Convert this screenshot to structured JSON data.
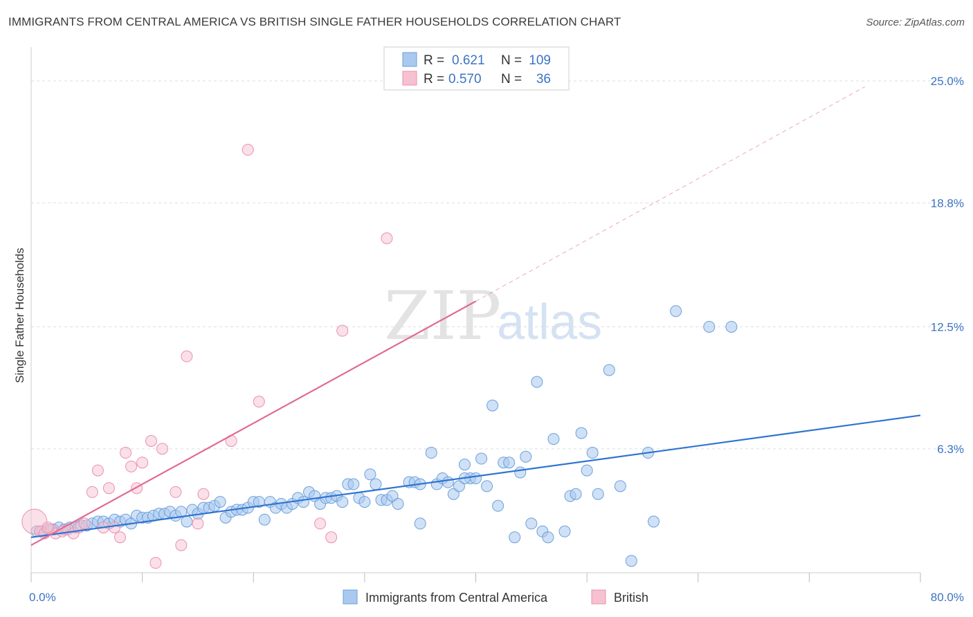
{
  "title": "IMMIGRANTS FROM CENTRAL AMERICA VS BRITISH SINGLE FATHER HOUSEHOLDS CORRELATION CHART",
  "source": "Source: ZipAtlas.com",
  "watermark": {
    "zip": "ZIP",
    "atlas": "atlas"
  },
  "legend": {
    "rows": [
      {
        "r_label": "R =",
        "r_value": "0.621",
        "n_label": "N =",
        "n_value": "109",
        "color": "#7fb0e8"
      },
      {
        "r_label": "R =",
        "r_value": "0.570",
        "n_label": "N =",
        "n_value": "36",
        "color": "#f19cb7"
      }
    ]
  },
  "bottom_legend": [
    {
      "label": "Immigrants from Central America",
      "color": "#7fb0e8"
    },
    {
      "label": "British",
      "color": "#f19cb7"
    }
  ],
  "colors": {
    "blue_fill": "#a9c9ef",
    "blue_stroke": "#6a9fdc",
    "blue_line": "#2f74d0",
    "pink_fill": "#f6c1d1",
    "pink_stroke": "#ec8fae",
    "pink_line": "#e06a93",
    "tick_label": "#3b73c4",
    "grid": "#dddddd"
  },
  "chart_data": {
    "type": "scatter",
    "title": "IMMIGRANTS FROM CENTRAL AMERICA VS BRITISH SINGLE FATHER HOUSEHOLDS CORRELATION CHART",
    "xlabel": "",
    "ylabel": "Single Father Households",
    "xlim": [
      0,
      80
    ],
    "ylim": [
      0,
      26.3
    ],
    "x_tick_labels": [
      {
        "value": 0,
        "label": "0.0%"
      },
      {
        "value": 80,
        "label": "80.0%"
      }
    ],
    "y_tick_labels": [
      {
        "value": 6.3,
        "label": "6.3%"
      },
      {
        "value": 12.5,
        "label": "12.5%"
      },
      {
        "value": 18.8,
        "label": "18.8%"
      },
      {
        "value": 25.0,
        "label": "25.0%"
      }
    ],
    "grid": true,
    "legend_position": "top-center",
    "series": [
      {
        "name": "Immigrants from Central America",
        "color": "#7fb0e8",
        "trend": {
          "x": [
            0,
            80
          ],
          "y": [
            1.8,
            8.0
          ]
        },
        "points": [
          [
            0.5,
            2.1
          ],
          [
            1.0,
            2.1
          ],
          [
            1.5,
            2.2
          ],
          [
            2.0,
            2.2
          ],
          [
            2.5,
            2.3
          ],
          [
            3.0,
            2.2
          ],
          [
            3.5,
            2.3
          ],
          [
            4.0,
            2.3
          ],
          [
            4.5,
            2.4
          ],
          [
            5.0,
            2.4
          ],
          [
            5.5,
            2.5
          ],
          [
            6.0,
            2.6
          ],
          [
            6.5,
            2.6
          ],
          [
            7.0,
            2.5
          ],
          [
            7.5,
            2.7
          ],
          [
            8.0,
            2.6
          ],
          [
            8.5,
            2.7
          ],
          [
            9.0,
            2.5
          ],
          [
            9.5,
            2.9
          ],
          [
            10.0,
            2.8
          ],
          [
            10.5,
            2.8
          ],
          [
            11.0,
            2.9
          ],
          [
            11.5,
            3.0
          ],
          [
            12.0,
            3.0
          ],
          [
            12.5,
            3.1
          ],
          [
            13.0,
            2.9
          ],
          [
            13.5,
            3.1
          ],
          [
            14.0,
            2.6
          ],
          [
            14.5,
            3.2
          ],
          [
            15.0,
            3.0
          ],
          [
            15.5,
            3.3
          ],
          [
            16.0,
            3.3
          ],
          [
            16.5,
            3.4
          ],
          [
            17.0,
            3.6
          ],
          [
            17.5,
            2.8
          ],
          [
            18.0,
            3.1
          ],
          [
            18.5,
            3.2
          ],
          [
            19.0,
            3.2
          ],
          [
            19.5,
            3.3
          ],
          [
            20.0,
            3.6
          ],
          [
            20.5,
            3.6
          ],
          [
            21.0,
            2.7
          ],
          [
            21.5,
            3.6
          ],
          [
            22.0,
            3.3
          ],
          [
            22.5,
            3.5
          ],
          [
            23.0,
            3.3
          ],
          [
            23.5,
            3.5
          ],
          [
            24.0,
            3.8
          ],
          [
            24.5,
            3.6
          ],
          [
            25.0,
            4.1
          ],
          [
            25.5,
            3.9
          ],
          [
            26.0,
            3.5
          ],
          [
            26.5,
            3.8
          ],
          [
            27.0,
            3.8
          ],
          [
            27.5,
            3.9
          ],
          [
            28.0,
            3.6
          ],
          [
            28.5,
            4.5
          ],
          [
            29.0,
            4.5
          ],
          [
            29.5,
            3.8
          ],
          [
            30.0,
            3.6
          ],
          [
            30.5,
            5.0
          ],
          [
            31.0,
            4.5
          ],
          [
            31.5,
            3.7
          ],
          [
            32.0,
            3.7
          ],
          [
            32.5,
            3.9
          ],
          [
            33.0,
            3.5
          ],
          [
            34.0,
            4.6
          ],
          [
            34.5,
            4.6
          ],
          [
            35.0,
            4.5
          ],
          [
            36.0,
            6.1
          ],
          [
            36.5,
            4.5
          ],
          [
            37.0,
            4.8
          ],
          [
            37.5,
            4.6
          ],
          [
            38.0,
            4.0
          ],
          [
            38.5,
            4.4
          ],
          [
            39.0,
            5.5
          ],
          [
            39.5,
            4.8
          ],
          [
            40.0,
            4.8
          ],
          [
            40.5,
            5.8
          ],
          [
            41.0,
            4.4
          ],
          [
            41.5,
            8.5
          ],
          [
            42.0,
            3.4
          ],
          [
            42.5,
            5.6
          ],
          [
            43.0,
            5.6
          ],
          [
            43.5,
            1.8
          ],
          [
            44.0,
            5.1
          ],
          [
            44.5,
            5.9
          ],
          [
            45.0,
            2.5
          ],
          [
            45.5,
            9.7
          ],
          [
            46.0,
            2.1
          ],
          [
            46.5,
            1.8
          ],
          [
            47.0,
            6.8
          ],
          [
            48.0,
            2.1
          ],
          [
            48.5,
            3.9
          ],
          [
            49.0,
            4.0
          ],
          [
            49.5,
            7.1
          ],
          [
            50.0,
            5.2
          ],
          [
            50.5,
            6.1
          ],
          [
            51.0,
            4.0
          ],
          [
            52.0,
            10.3
          ],
          [
            53.0,
            4.4
          ],
          [
            54.0,
            0.6
          ],
          [
            55.5,
            6.1
          ],
          [
            56.0,
            2.6
          ],
          [
            58.0,
            13.3
          ],
          [
            61.0,
            12.5
          ],
          [
            63.0,
            12.5
          ],
          [
            35.0,
            2.5
          ],
          [
            39.0,
            4.8
          ]
        ]
      },
      {
        "name": "British",
        "color": "#f19cb7",
        "trend": {
          "x": [
            0,
            40
          ],
          "y": [
            1.4,
            13.8
          ]
        },
        "trend_extended": {
          "x": [
            40,
            75
          ],
          "y": [
            13.8,
            24.7
          ]
        },
        "points": [
          [
            0.3,
            2.6
          ],
          [
            0.8,
            2.1
          ],
          [
            1.2,
            2.0
          ],
          [
            1.8,
            2.2
          ],
          [
            2.2,
            2.0
          ],
          [
            2.8,
            2.1
          ],
          [
            3.3,
            2.2
          ],
          [
            3.8,
            2.0
          ],
          [
            4.3,
            2.3
          ],
          [
            4.8,
            2.5
          ],
          [
            5.5,
            4.1
          ],
          [
            6.0,
            5.2
          ],
          [
            6.5,
            2.3
          ],
          [
            7.0,
            4.3
          ],
          [
            7.5,
            2.3
          ],
          [
            8.0,
            1.8
          ],
          [
            8.5,
            6.1
          ],
          [
            9.0,
            5.4
          ],
          [
            9.5,
            4.3
          ],
          [
            10.0,
            5.6
          ],
          [
            10.8,
            6.7
          ],
          [
            11.2,
            0.5
          ],
          [
            11.8,
            6.3
          ],
          [
            13.0,
            4.1
          ],
          [
            14.0,
            11.0
          ],
          [
            15.0,
            2.5
          ],
          [
            15.5,
            4.0
          ],
          [
            13.5,
            1.4
          ],
          [
            18.0,
            6.7
          ],
          [
            19.5,
            21.5
          ],
          [
            20.5,
            8.7
          ],
          [
            26.0,
            2.5
          ],
          [
            27.0,
            1.8
          ],
          [
            28.0,
            12.3
          ],
          [
            32.0,
            17.0
          ],
          [
            1.5,
            2.3
          ]
        ]
      }
    ]
  }
}
